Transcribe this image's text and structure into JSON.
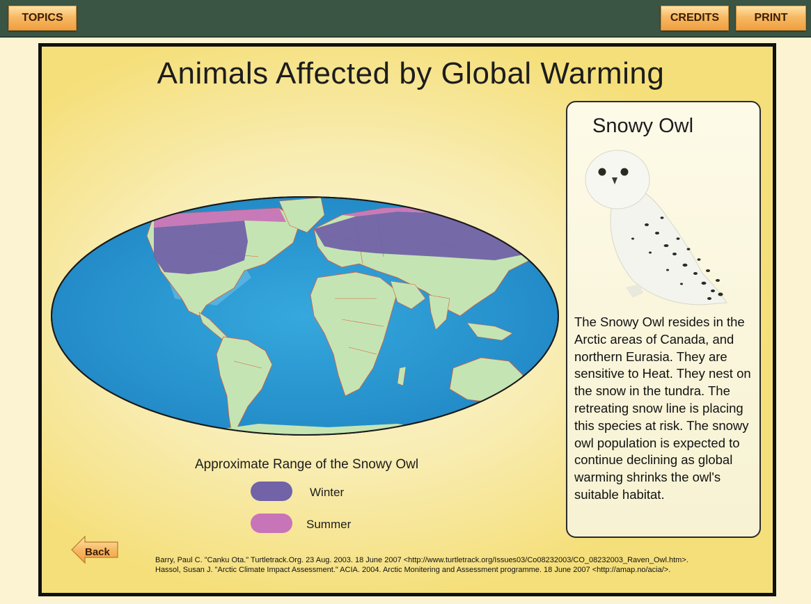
{
  "toolbar": {
    "topics_label": "TOPICS",
    "credits_label": "CREDITS",
    "print_label": "PRINT"
  },
  "page": {
    "title": "Animals Affected by Global Warming"
  },
  "legend": {
    "title": "Approximate Range of the Snowy Owl",
    "items": [
      {
        "label": "Winter",
        "color": "#7262a8"
      },
      {
        "label": "Summer",
        "color": "#c874b8"
      }
    ]
  },
  "info_panel": {
    "title": "Snowy Owl",
    "description": "The Snowy Owl resides in the Arctic areas of Canada, and northern Eurasia.  They are sensitive to Heat.  They nest on the snow in the tundra.  The retreating snow line is placing this species at risk.  The snowy owl population is expected to continue declining as global warming shrinks the owl's suitable habitat."
  },
  "nav": {
    "back_label": "Back"
  },
  "references": [
    "Barry, Paul C. \"Canku Ota.\" Turtletrack.Org. 23 Aug. 2003. 18 June 2007 <http://www.turtletrack.org/Issues03/Co08232003/CO_08232003_Raven_Owl.htm>.",
    "Hassol, Susan J. \"Arctic Climate Impact Assessment.\" ACIA. 2004. Arctic Monitering and Assessment programme. 18 June 2007 <http://amap.no/acia/>."
  ],
  "colors": {
    "topbar": "#3b5544",
    "button": "#f7b964",
    "ocean": "#2f9fd6",
    "land": "#c4e5b3",
    "borders": "#e0583a"
  }
}
